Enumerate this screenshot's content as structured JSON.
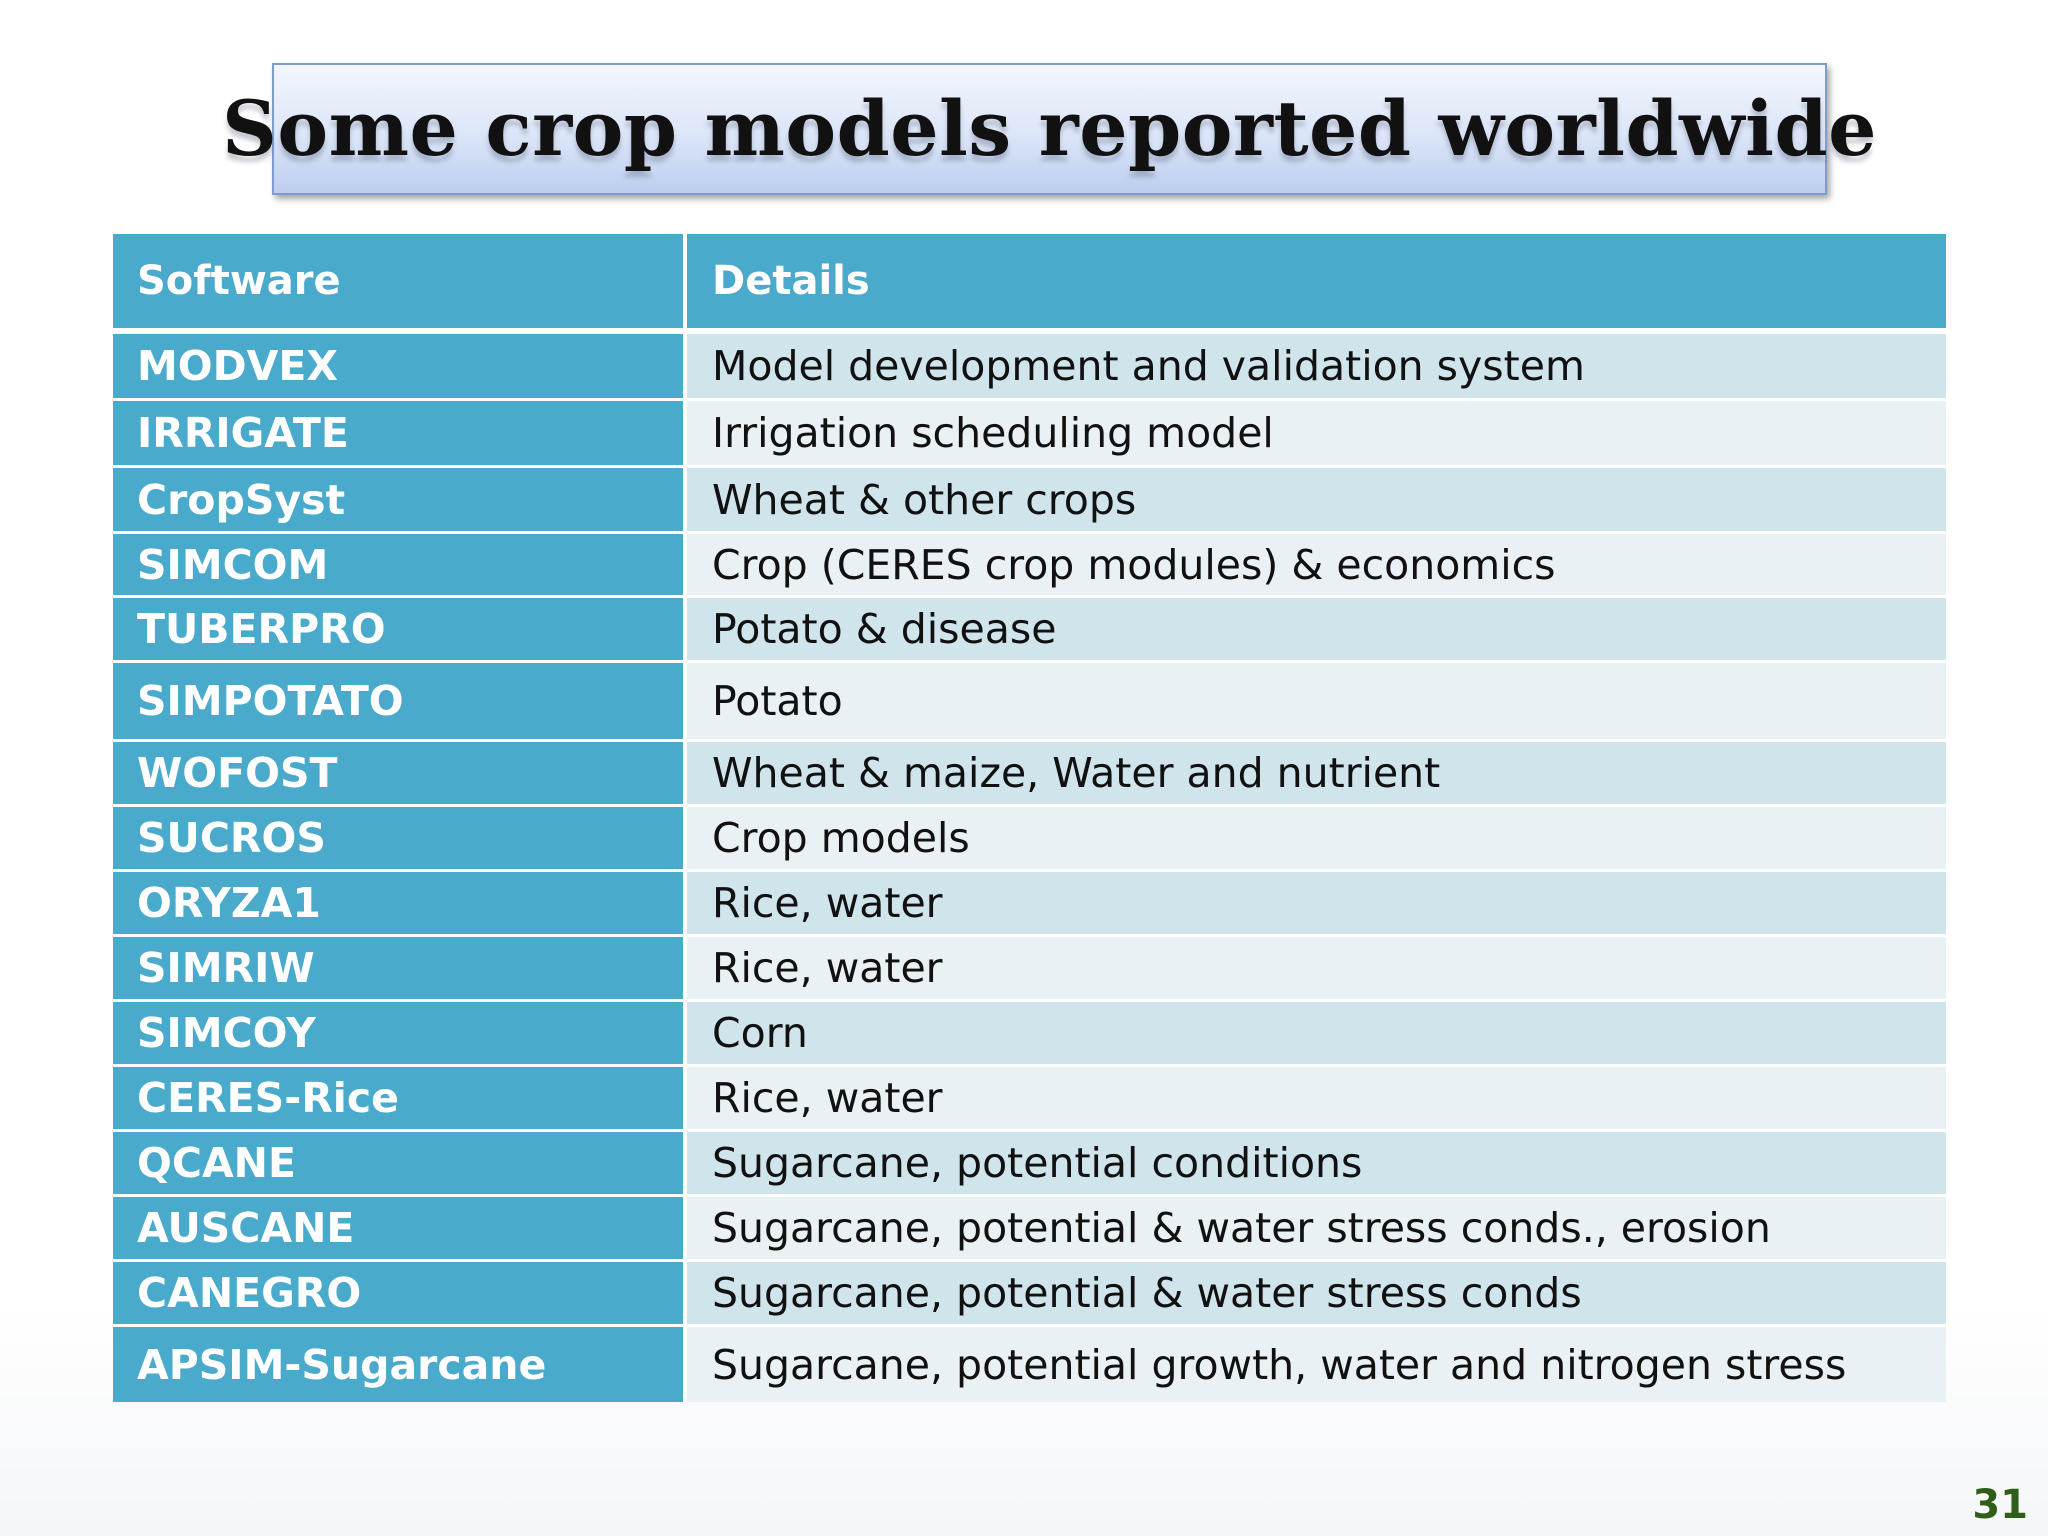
{
  "title": "Some crop models reported worldwide",
  "table": {
    "headers": [
      "Software",
      "Details"
    ],
    "rows": [
      {
        "software": "MODVEX",
        "details": "Model development and validation system"
      },
      {
        "software": "IRRIGATE",
        "details": "Irrigation scheduling model"
      },
      {
        "software": "CropSyst",
        "details": "Wheat & other crops"
      },
      {
        "software": "SIMCOM",
        "details": "Crop (CERES crop modules) & economics"
      },
      {
        "software": "TUBERPRO",
        "details": "Potato & disease"
      },
      {
        "software": "SIMPOTATO",
        "details": "Potato"
      },
      {
        "software": "WOFOST",
        "details": "Wheat & maize, Water and nutrient"
      },
      {
        "software": "SUCROS",
        "details": "Crop models"
      },
      {
        "software": "ORYZA1",
        "details": "Rice, water"
      },
      {
        "software": "SIMRIW",
        "details": "Rice, water"
      },
      {
        "software": "SIMCOY",
        "details": "Corn"
      },
      {
        "software": "CERES-Rice",
        "details": "Rice, water"
      },
      {
        "software": "QCANE",
        "details": "Sugarcane, potential conditions"
      },
      {
        "software": "AUSCANE",
        "details": "Sugarcane, potential & water stress conds., erosion"
      },
      {
        "software": "CANEGRO",
        "details": "Sugarcane, potential & water stress conds"
      },
      {
        "software": "APSIM-Sugarcane",
        "details": "Sugarcane, potential growth, water and nitrogen stress"
      }
    ]
  },
  "page_number": "31",
  "colors": {
    "header": "#4aaacb",
    "row_odd": "#d0e4ec",
    "row_even": "#e9f1f5",
    "page_number": "#2f5e1a"
  }
}
